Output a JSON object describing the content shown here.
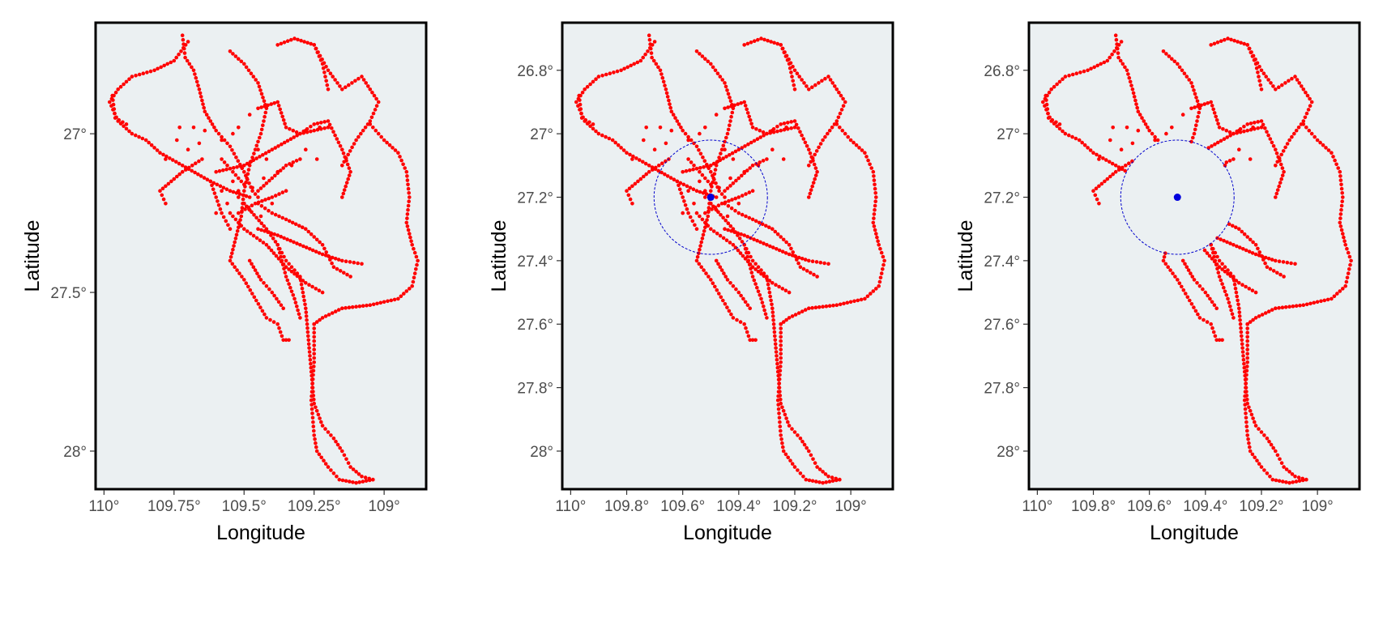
{
  "colors": {
    "panel_background": "#ebf0f2",
    "frame": "#000000",
    "track_points": "#ff0000",
    "center_point": "#0000dd",
    "buffer_circle": "#0000cc",
    "tick_text": "#4d4d4d"
  },
  "panels": [
    {
      "id": "panel-1",
      "xlabel": "Longitude",
      "ylabel": "Latitude",
      "x_ticks": [
        "110°",
        "109.75°",
        "109.5°",
        "109.25°",
        "109°"
      ],
      "y_ticks": [
        "27°",
        "27.5°",
        "28°"
      ],
      "show_center": false,
      "show_buffer": false,
      "filter_inside_buffer": false
    },
    {
      "id": "panel-2",
      "xlabel": "Longitude",
      "ylabel": "Latitude",
      "x_ticks": [
        "110°",
        "109.8°",
        "109.6°",
        "109.4°",
        "109.2°",
        "109°"
      ],
      "y_ticks": [
        "26.8°",
        "27°",
        "27.2°",
        "27.4°",
        "27.6°",
        "27.8°",
        "28°"
      ],
      "show_center": true,
      "show_buffer": true,
      "filter_inside_buffer": false
    },
    {
      "id": "panel-3",
      "xlabel": "Longitude",
      "ylabel": "Latitude",
      "x_ticks": [
        "110°",
        "109.8°",
        "109.6°",
        "109.4°",
        "109.2°",
        "109°"
      ],
      "y_ticks": [
        "26.8°",
        "27°",
        "27.2°",
        "27.4°",
        "27.6°",
        "27.8°",
        "28°"
      ],
      "show_center": true,
      "show_buffer": true,
      "filter_inside_buffer": true
    }
  ],
  "chart_data": {
    "type": "scatter",
    "x_axis": "longitude",
    "y_axis": "latitude",
    "x_reversed": true,
    "y_reversed": true,
    "xlim": [
      110.03,
      108.85
    ],
    "ylim": [
      26.65,
      28.12
    ],
    "center_point": {
      "lon": 109.5,
      "lat": 27.2
    },
    "buffer_radius_deg": 0.18,
    "track_paths": [
      [
        [
          109.72,
          26.69
        ],
        [
          109.71,
          26.76
        ],
        [
          109.68,
          26.8
        ],
        [
          109.66,
          26.86
        ],
        [
          109.64,
          26.93
        ],
        [
          109.6,
          26.99
        ],
        [
          109.55,
          27.04
        ],
        [
          109.5,
          27.12
        ],
        [
          109.47,
          27.18
        ],
        [
          109.45,
          27.2
        ]
      ],
      [
        [
          109.7,
          26.71
        ],
        [
          109.75,
          26.77
        ],
        [
          109.82,
          26.8
        ],
        [
          109.9,
          26.82
        ],
        [
          109.95,
          26.86
        ],
        [
          109.98,
          26.9
        ],
        [
          109.95,
          26.96
        ],
        [
          109.9,
          27.0
        ],
        [
          109.85,
          27.02
        ],
        [
          109.8,
          27.06
        ],
        [
          109.72,
          27.1
        ],
        [
          109.62,
          27.15
        ],
        [
          109.55,
          27.18
        ],
        [
          109.48,
          27.2
        ]
      ],
      [
        [
          109.97,
          26.88
        ],
        [
          109.96,
          26.95
        ],
        [
          109.92,
          26.97
        ]
      ],
      [
        [
          109.55,
          26.74
        ],
        [
          109.5,
          26.78
        ],
        [
          109.45,
          26.84
        ],
        [
          109.42,
          26.92
        ],
        [
          109.44,
          27.0
        ],
        [
          109.48,
          27.1
        ],
        [
          109.5,
          27.18
        ],
        [
          109.51,
          27.26
        ],
        [
          109.53,
          27.33
        ],
        [
          109.55,
          27.4
        ],
        [
          109.5,
          27.46
        ],
        [
          109.42,
          27.58
        ],
        [
          109.38,
          27.6
        ],
        [
          109.36,
          27.65
        ],
        [
          109.34,
          27.65
        ]
      ],
      [
        [
          109.45,
          26.92
        ],
        [
          109.38,
          26.9
        ],
        [
          109.35,
          26.98
        ],
        [
          109.3,
          27.0
        ],
        [
          109.25,
          26.97
        ],
        [
          109.2,
          26.96
        ],
        [
          109.15,
          27.05
        ],
        [
          109.12,
          27.12
        ],
        [
          109.15,
          27.2
        ]
      ],
      [
        [
          109.38,
          26.72
        ],
        [
          109.32,
          26.7
        ],
        [
          109.25,
          26.72
        ],
        [
          109.2,
          26.8
        ],
        [
          109.15,
          26.86
        ],
        [
          109.08,
          26.82
        ],
        [
          109.05,
          26.86
        ],
        [
          109.02,
          26.9
        ],
        [
          109.05,
          26.96
        ],
        [
          109.1,
          27.02
        ],
        [
          109.15,
          27.1
        ]
      ],
      [
        [
          109.25,
          26.72
        ],
        [
          109.22,
          26.78
        ],
        [
          109.2,
          26.86
        ]
      ],
      [
        [
          109.05,
          26.97
        ],
        [
          109.0,
          27.02
        ],
        [
          108.95,
          27.06
        ],
        [
          108.92,
          27.12
        ],
        [
          108.91,
          27.2
        ],
        [
          108.92,
          27.28
        ],
        [
          108.9,
          27.35
        ],
        [
          108.88,
          27.4
        ],
        [
          108.9,
          27.48
        ],
        [
          108.95,
          27.52
        ],
        [
          109.05,
          27.54
        ],
        [
          109.15,
          27.55
        ],
        [
          109.22,
          27.58
        ],
        [
          109.25,
          27.6
        ]
      ],
      [
        [
          109.6,
          27.12
        ],
        [
          109.5,
          27.1
        ],
        [
          109.4,
          27.05
        ],
        [
          109.3,
          27.0
        ],
        [
          109.2,
          26.98
        ]
      ],
      [
        [
          109.5,
          27.22
        ],
        [
          109.42,
          27.3
        ],
        [
          109.38,
          27.35
        ],
        [
          109.35,
          27.4
        ],
        [
          109.3,
          27.45
        ],
        [
          109.28,
          27.55
        ],
        [
          109.27,
          27.65
        ],
        [
          109.26,
          27.75
        ],
        [
          109.25,
          27.85
        ],
        [
          109.22,
          27.92
        ],
        [
          109.18,
          27.96
        ],
        [
          109.15,
          28.0
        ],
        [
          109.12,
          28.05
        ],
        [
          109.08,
          28.08
        ],
        [
          109.04,
          28.09
        ]
      ],
      [
        [
          109.25,
          27.6
        ],
        [
          109.25,
          27.72
        ],
        [
          109.26,
          27.84
        ],
        [
          109.25,
          27.95
        ],
        [
          109.24,
          28.0
        ],
        [
          109.2,
          28.05
        ],
        [
          109.16,
          28.09
        ],
        [
          109.1,
          28.1
        ],
        [
          109.04,
          28.09
        ]
      ],
      [
        [
          109.45,
          27.3
        ],
        [
          109.38,
          27.32
        ],
        [
          109.3,
          27.35
        ],
        [
          109.22,
          27.38
        ],
        [
          109.15,
          27.4
        ],
        [
          109.08,
          27.41
        ]
      ],
      [
        [
          109.55,
          27.25
        ],
        [
          109.5,
          27.3
        ],
        [
          109.42,
          27.35
        ],
        [
          109.35,
          27.42
        ],
        [
          109.28,
          27.47
        ],
        [
          109.22,
          27.5
        ]
      ],
      [
        [
          109.45,
          27.22
        ],
        [
          109.4,
          27.25
        ],
        [
          109.35,
          27.27
        ],
        [
          109.28,
          27.3
        ],
        [
          109.22,
          27.35
        ],
        [
          109.18,
          27.42
        ],
        [
          109.12,
          27.45
        ]
      ],
      [
        [
          109.48,
          27.4
        ],
        [
          109.44,
          27.46
        ],
        [
          109.4,
          27.5
        ],
        [
          109.36,
          27.55
        ]
      ],
      [
        [
          109.38,
          27.35
        ],
        [
          109.35,
          27.45
        ],
        [
          109.32,
          27.52
        ],
        [
          109.3,
          27.58
        ]
      ],
      [
        [
          109.65,
          27.08
        ],
        [
          109.72,
          27.12
        ],
        [
          109.8,
          27.18
        ],
        [
          109.78,
          27.22
        ]
      ],
      [
        [
          109.62,
          27.15
        ],
        [
          109.6,
          27.2
        ],
        [
          109.58,
          27.25
        ],
        [
          109.55,
          27.3
        ]
      ],
      [
        [
          109.58,
          27.08
        ],
        [
          109.54,
          27.12
        ],
        [
          109.5,
          27.16
        ]
      ],
      [
        [
          109.45,
          27.18
        ],
        [
          109.4,
          27.14
        ],
        [
          109.35,
          27.1
        ],
        [
          109.3,
          27.08
        ]
      ],
      [
        [
          109.52,
          27.25
        ],
        [
          109.46,
          27.22
        ],
        [
          109.4,
          27.2
        ],
        [
          109.35,
          27.18
        ]
      ]
    ],
    "extra_points": [
      [
        109.73,
        26.98
      ],
      [
        109.68,
        26.98
      ],
      [
        109.64,
        26.99
      ],
      [
        109.52,
        26.98
      ],
      [
        109.48,
        26.94
      ],
      [
        109.28,
        26.99
      ],
      [
        109.23,
        26.98
      ],
      [
        109.74,
        27.02
      ],
      [
        109.7,
        27.05
      ],
      [
        109.66,
        27.03
      ],
      [
        109.78,
        27.08
      ],
      [
        109.58,
        27.02
      ],
      [
        109.54,
        27.0
      ],
      [
        109.45,
        27.05
      ],
      [
        109.42,
        27.08
      ],
      [
        109.38,
        27.12
      ],
      [
        109.33,
        27.1
      ],
      [
        109.28,
        27.05
      ],
      [
        109.24,
        27.08
      ],
      [
        109.6,
        27.25
      ],
      [
        109.56,
        27.22
      ],
      [
        109.52,
        27.2
      ],
      [
        109.48,
        27.24
      ],
      [
        109.44,
        27.26
      ],
      [
        109.4,
        27.22
      ],
      [
        109.58,
        27.18
      ],
      [
        109.54,
        27.15
      ],
      [
        109.5,
        27.22
      ],
      [
        109.47,
        27.17
      ],
      [
        109.43,
        27.14
      ],
      [
        109.52,
        27.18
      ]
    ]
  }
}
